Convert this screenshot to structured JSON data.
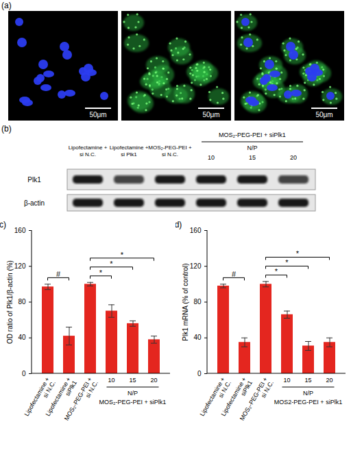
{
  "panels": {
    "a": {
      "label": "(a)",
      "images": [
        {
          "scale_bar": "50μm"
        },
        {
          "scale_bar": "50μm"
        },
        {
          "scale_bar": "50μm"
        }
      ]
    },
    "b": {
      "label": "(b)",
      "lanes": [
        "Lipofectamine + si N.C.",
        "Lipofectamine + si Plk1",
        "MOS₂-PEG-PEI + si N.C.",
        "10",
        "15",
        "20"
      ],
      "group": {
        "label": "MOS₂-PEG-PEI + siPlk1",
        "sublabel": "N/P",
        "lanes": [
          "10",
          "15",
          "20"
        ]
      },
      "rows": [
        "Plk1",
        "β-actin"
      ]
    }
  },
  "chart_data": [
    {
      "type": "bar",
      "panel_label": "(c)",
      "ylabel": "OD ratio of Plk1/β-actin (%)",
      "categories": [
        "Lipofectamine + si N.C.",
        "Lipofectamine + siPlk1",
        "MOS₂-PEG-PEI + si N.C.",
        "10",
        "15",
        "20"
      ],
      "values": [
        97,
        42,
        100,
        70,
        56,
        38
      ],
      "errors": [
        3,
        10,
        2,
        7,
        3,
        4
      ],
      "color": "#e4261f",
      "ylim": [
        0,
        160
      ],
      "yticks": [
        0,
        40,
        80,
        120,
        160
      ],
      "group": {
        "label": "MOS₂-PEG-PEI + siPlk1",
        "sublabel": "N/P",
        "categories": [
          "10",
          "15",
          "20"
        ]
      },
      "annotations": [
        {
          "text": "#",
          "from": "Lipofectamine + si N.C.",
          "to": "Lipofectamine + siPlk1"
        },
        {
          "text": "*",
          "from": "MOS₂-PEG-PEI + si N.C.",
          "to": "10"
        },
        {
          "text": "*",
          "from": "MOS₂-PEG-PEI + si N.C.",
          "to": "15"
        },
        {
          "text": "*",
          "from": "MOS₂-PEG-PEI + si N.C.",
          "to": "20"
        }
      ]
    },
    {
      "type": "bar",
      "panel_label": "(d)",
      "ylabel": "Plk1 mRNA (% of control)",
      "categories": [
        "Lipofectamine + si N.C.",
        "Lipofectamine + siPlk1",
        "MOS₂-PEG-PEI + si N.C.",
        "10",
        "15",
        "20"
      ],
      "values": [
        98,
        35,
        100,
        66,
        31,
        35
      ],
      "errors": [
        2,
        5,
        3,
        4,
        5,
        5
      ],
      "color": "#e4261f",
      "ylim": [
        0,
        160
      ],
      "yticks": [
        0,
        40,
        80,
        120,
        160
      ],
      "group": {
        "label": "MOS2-PEG-PEI + siPlk1",
        "sublabel": "N/P",
        "categories": [
          "10",
          "15",
          "20"
        ]
      },
      "annotations": [
        {
          "text": "#",
          "from": "Lipofectamine + si N.C.",
          "to": "Lipofectamine + siPlk1"
        },
        {
          "text": "*",
          "from": "MOS₂-PEG-PEI + si N.C.",
          "to": "10"
        },
        {
          "text": "*",
          "from": "MOS₂-PEG-PEI + si N.C.",
          "to": "15"
        },
        {
          "text": "*",
          "from": "MOS₂-PEG-PEI + si N.C.",
          "to": "20"
        }
      ]
    }
  ]
}
